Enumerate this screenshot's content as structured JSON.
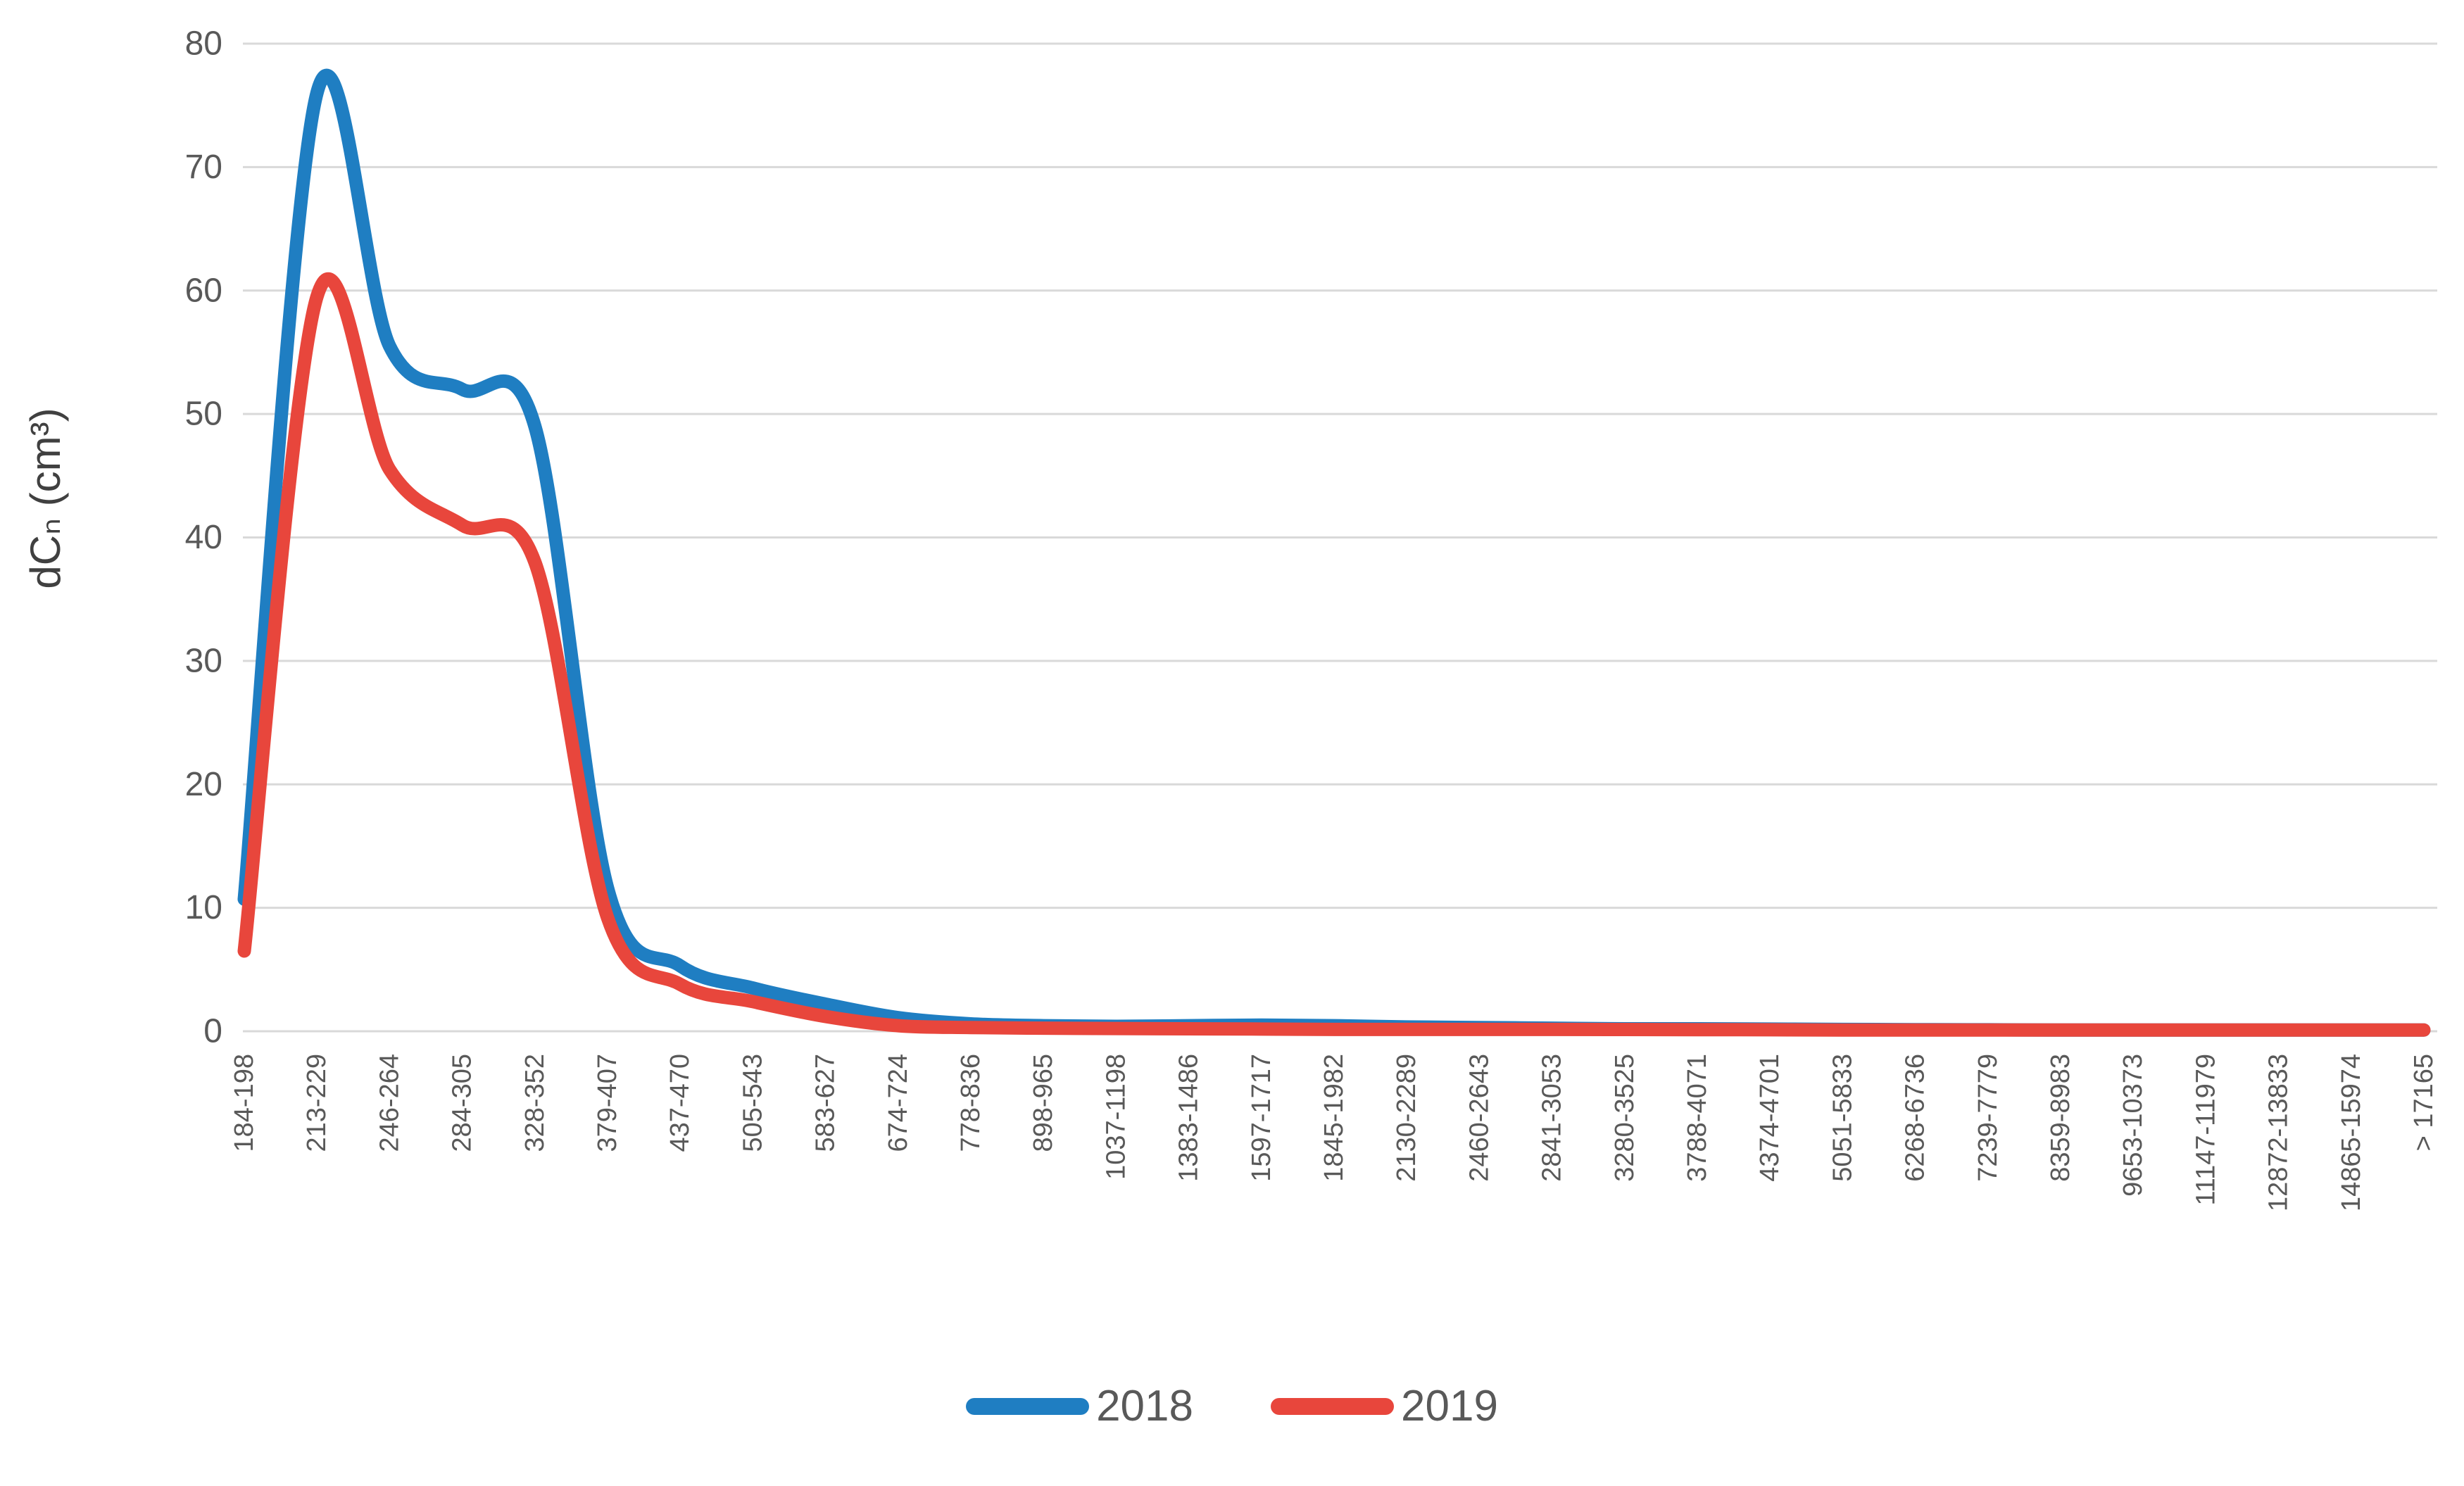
{
  "chart_data": {
    "type": "line",
    "title": "",
    "xlabel": "",
    "ylabel": "dCₙ (cm³)",
    "ylim": [
      0,
      80
    ],
    "ytick_step": 10,
    "grid": true,
    "legend_position": "bottom",
    "categories": [
      "184-198",
      "213-229",
      "246-264",
      "284-305",
      "328-352",
      "379-407",
      "437-470",
      "505-543",
      "583-627",
      "674-724",
      "778-836",
      "898-965",
      "1037-1198",
      "1383-1486",
      "1597-1717",
      "1845-1982",
      "2130-2289",
      "2460-2643",
      "2841-3053",
      "3280-3525",
      "3788-4071",
      "4374-4701",
      "5051-5833",
      "6268-6736",
      "7239-7779",
      "8359-8983",
      "9653-10373",
      "11147-11979",
      "12872-13833",
      "14865-15974",
      "> 17165"
    ],
    "yticks": [
      0,
      10,
      20,
      30,
      40,
      50,
      60,
      70,
      80
    ],
    "series": [
      {
        "name": "2018",
        "color": "#1f7ec2",
        "values": [
          10.7,
          76.0,
          55.5,
          52.0,
          49.0,
          11.6,
          5.3,
          3.5,
          2.2,
          1.1,
          0.6,
          0.45,
          0.4,
          0.45,
          0.5,
          0.45,
          0.35,
          0.3,
          0.25,
          0.2,
          0.2,
          0.18,
          0.15,
          0.13,
          0.12,
          0.1,
          0.1,
          0.1,
          0.1,
          0.1,
          0.1
        ]
      },
      {
        "name": "2019",
        "color": "#e8463c",
        "values": [
          6.5,
          59.5,
          45.5,
          41.0,
          38.0,
          9.2,
          3.8,
          2.4,
          1.2,
          0.45,
          0.3,
          0.25,
          0.22,
          0.2,
          0.18,
          0.15,
          0.15,
          0.15,
          0.15,
          0.14,
          0.13,
          0.12,
          0.1,
          0.1,
          0.1,
          0.1,
          0.1,
          0.1,
          0.1,
          0.1,
          0.1
        ]
      }
    ]
  },
  "colors": {
    "gridline": "#d9d9d9",
    "tick_text": "#595959",
    "axis_title_text": "#404040",
    "background": "#ffffff"
  }
}
